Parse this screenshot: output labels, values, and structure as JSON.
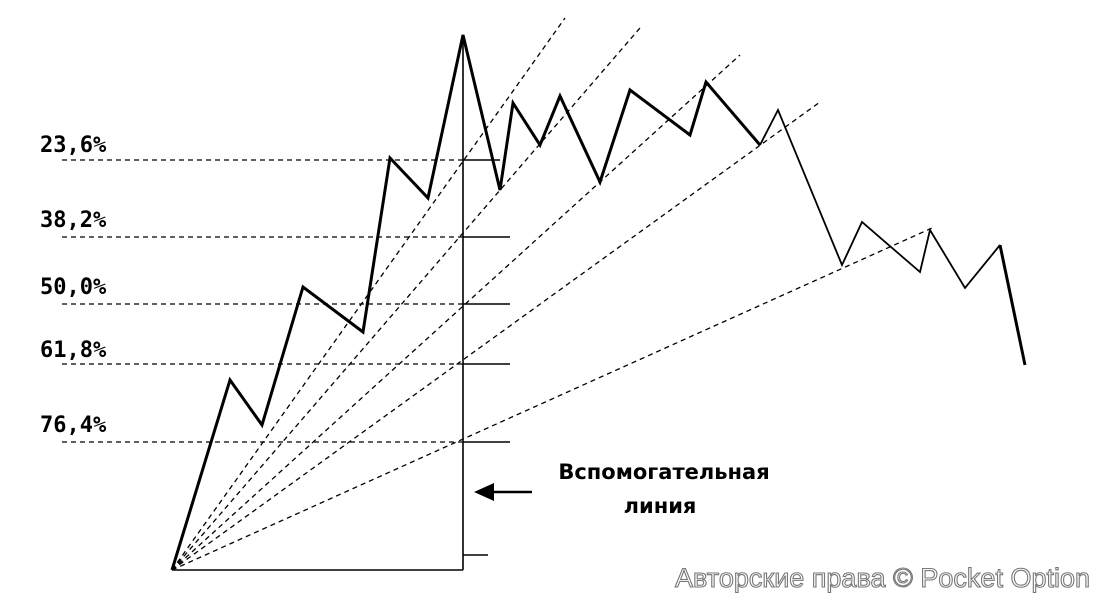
{
  "levels": [
    "23,6%",
    "38,2%",
    "50,0%",
    "61,8%",
    "76,4%"
  ],
  "annotation": {
    "line1": "Вспомогательная",
    "line2": "линия"
  },
  "watermark": "Авторские права © Pocket Option"
}
